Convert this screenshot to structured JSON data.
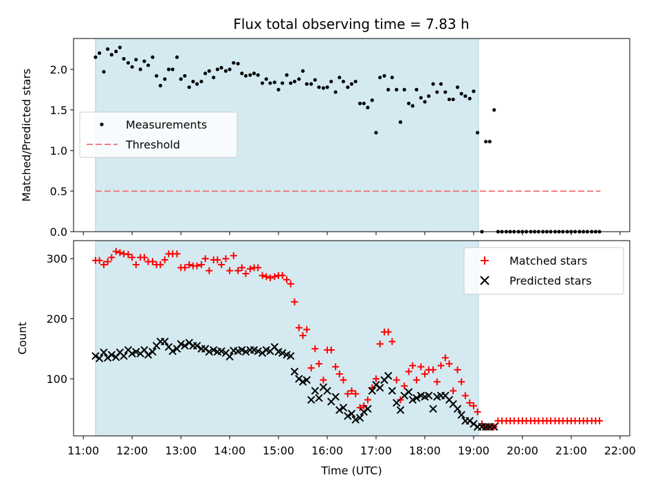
{
  "title": "Flux total observing time = 7.83 h",
  "colors": {
    "shade": "#d4eaf0",
    "shade_edge": "#a8d3de",
    "measure": "#000000",
    "threshold": "#f08080",
    "matched": "#ff0000",
    "predicted": "#000000"
  },
  "chart_data": [
    {
      "type": "scatter",
      "ylabel": "Matched/Predicted stars",
      "ylim": [
        0,
        2.38
      ],
      "yticks": [
        "0.0",
        "0.5",
        "1.0",
        "1.5",
        "2.0"
      ],
      "xlim_hours": [
        10.8,
        22.2
      ],
      "shaded_interval_hours": [
        11.25,
        19.1
      ],
      "legend": {
        "position": "center-left",
        "entries": [
          "Measurements",
          "Threshold"
        ]
      },
      "threshold": {
        "name": "Threshold",
        "value": 0.5,
        "x_range_hours": [
          11.25,
          21.6
        ]
      },
      "series": [
        {
          "name": "Measurements",
          "marker": "dot",
          "x": [
            11.25,
            11.33,
            11.42,
            11.5,
            11.58,
            11.67,
            11.75,
            11.83,
            11.92,
            12.0,
            12.08,
            12.17,
            12.25,
            12.33,
            12.42,
            12.5,
            12.58,
            12.67,
            12.75,
            12.83,
            12.92,
            13.0,
            13.08,
            13.17,
            13.25,
            13.33,
            13.42,
            13.5,
            13.58,
            13.67,
            13.75,
            13.83,
            13.92,
            14.0,
            14.08,
            14.17,
            14.25,
            14.33,
            14.42,
            14.5,
            14.58,
            14.67,
            14.75,
            14.83,
            14.92,
            15.0,
            15.08,
            15.17,
            15.25,
            15.33,
            15.42,
            15.5,
            15.58,
            15.67,
            15.75,
            15.83,
            15.92,
            16.0,
            16.08,
            16.17,
            16.25,
            16.33,
            16.42,
            16.5,
            16.58,
            16.67,
            16.75,
            16.83,
            16.92,
            17.0,
            17.08,
            17.17,
            17.25,
            17.33,
            17.42,
            17.5,
            17.58,
            17.67,
            17.75,
            17.83,
            17.92,
            18.0,
            18.08,
            18.17,
            18.25,
            18.33,
            18.42,
            18.5,
            18.58,
            18.67,
            18.75,
            18.83,
            18.92,
            19.0,
            19.08,
            19.17,
            19.25,
            19.33,
            19.42,
            19.5,
            19.58,
            19.67,
            19.75,
            19.83,
            19.92,
            20.0,
            20.08,
            20.17,
            20.25,
            20.33,
            20.42,
            20.5,
            20.58,
            20.67,
            20.75,
            20.83,
            20.92,
            21.0,
            21.08,
            21.17,
            21.25,
            21.33,
            21.42,
            21.5,
            21.58
          ],
          "y": [
            2.15,
            2.2,
            1.97,
            2.25,
            2.18,
            2.22,
            2.27,
            2.13,
            2.08,
            2.03,
            2.12,
            2.0,
            2.1,
            2.05,
            2.15,
            1.92,
            1.8,
            1.88,
            2.0,
            2.0,
            2.15,
            1.88,
            1.92,
            1.78,
            1.85,
            1.82,
            1.85,
            1.95,
            1.98,
            1.9,
            2.0,
            2.02,
            1.98,
            2.0,
            2.08,
            2.07,
            1.95,
            1.92,
            1.93,
            1.95,
            1.93,
            1.83,
            1.88,
            1.83,
            1.84,
            1.75,
            1.83,
            1.93,
            1.83,
            1.85,
            1.88,
            1.98,
            1.82,
            1.82,
            1.87,
            1.78,
            1.77,
            1.78,
            1.85,
            1.72,
            1.9,
            1.85,
            1.78,
            1.82,
            1.85,
            1.58,
            1.58,
            1.53,
            1.62,
            1.22,
            1.9,
            1.92,
            1.75,
            1.9,
            1.75,
            1.35,
            1.75,
            1.58,
            1.55,
            1.75,
            1.65,
            1.6,
            1.67,
            1.82,
            1.72,
            1.82,
            1.72,
            1.63,
            1.63,
            1.78,
            1.7,
            1.67,
            1.64,
            1.73,
            1.22,
            0.0,
            1.11,
            1.11,
            1.5,
            0.0,
            0.0,
            0.0,
            0.0,
            0.0,
            0.0,
            0.0,
            0.0,
            0.0,
            0.0,
            0.0,
            0.0,
            0.0,
            0.0,
            0.0,
            0.0,
            0.0,
            0.0,
            0.0,
            0.0,
            0.0,
            0.0,
            0.0,
            0.0,
            0.0,
            0.0
          ]
        }
      ]
    },
    {
      "type": "scatter",
      "ylabel": "Count",
      "xlabel": "Time (UTC)",
      "ylim": [
        5,
        330
      ],
      "yticks": [
        "100",
        "200",
        "300"
      ],
      "xlim_hours": [
        10.8,
        22.2
      ],
      "xticks": [
        "11:00",
        "12:00",
        "13:00",
        "14:00",
        "15:00",
        "16:00",
        "17:00",
        "18:00",
        "19:00",
        "20:00",
        "21:00",
        "22:00"
      ],
      "shaded_interval_hours": [
        11.25,
        19.1
      ],
      "legend": {
        "position": "top-right",
        "entries": [
          "Matched stars",
          "Predicted stars"
        ]
      },
      "series": [
        {
          "name": "Matched stars",
          "marker": "plus",
          "x": [
            11.25,
            11.33,
            11.42,
            11.5,
            11.58,
            11.67,
            11.75,
            11.83,
            11.92,
            12.0,
            12.08,
            12.17,
            12.25,
            12.33,
            12.42,
            12.5,
            12.58,
            12.67,
            12.75,
            12.83,
            12.92,
            13.0,
            13.08,
            13.17,
            13.25,
            13.33,
            13.42,
            13.5,
            13.58,
            13.67,
            13.75,
            13.83,
            13.92,
            14.0,
            14.08,
            14.17,
            14.25,
            14.33,
            14.42,
            14.5,
            14.58,
            14.67,
            14.75,
            14.83,
            14.92,
            15.0,
            15.08,
            15.17,
            15.25,
            15.33,
            15.42,
            15.5,
            15.58,
            15.67,
            15.75,
            15.83,
            15.92,
            16.0,
            16.08,
            16.17,
            16.25,
            16.33,
            16.42,
            16.5,
            16.58,
            16.67,
            16.75,
            16.83,
            16.92,
            17.0,
            17.08,
            17.17,
            17.25,
            17.33,
            17.42,
            17.5,
            17.58,
            17.67,
            17.75,
            17.83,
            17.92,
            18.0,
            18.08,
            18.17,
            18.25,
            18.33,
            18.42,
            18.5,
            18.58,
            18.67,
            18.75,
            18.83,
            18.92,
            19.0,
            19.08,
            19.17,
            19.25,
            19.33,
            19.42,
            19.5,
            19.58,
            19.67,
            19.75,
            19.83,
            19.92,
            20.0,
            20.08,
            20.17,
            20.25,
            20.33,
            20.42,
            20.5,
            20.58,
            20.67,
            20.75,
            20.83,
            20.92,
            21.0,
            21.08,
            21.17,
            21.25,
            21.33,
            21.42,
            21.5,
            21.58
          ],
          "y": [
            297,
            297,
            290,
            295,
            302,
            312,
            310,
            308,
            307,
            302,
            290,
            302,
            302,
            295,
            295,
            290,
            290,
            298,
            308,
            308,
            308,
            285,
            285,
            290,
            288,
            288,
            290,
            300,
            280,
            298,
            298,
            290,
            300,
            280,
            305,
            280,
            285,
            275,
            283,
            285,
            285,
            272,
            270,
            268,
            270,
            272,
            272,
            265,
            258,
            228,
            185,
            172,
            182,
            118,
            150,
            125,
            98,
            148,
            148,
            120,
            108,
            98,
            75,
            80,
            75,
            52,
            55,
            65,
            85,
            100,
            158,
            178,
            178,
            162,
            98,
            65,
            88,
            112,
            122,
            98,
            120,
            108,
            115,
            115,
            95,
            122,
            135,
            125,
            80,
            115,
            95,
            72,
            60,
            55,
            45,
            25,
            20,
            20,
            20,
            30,
            30,
            30,
            30,
            30,
            30,
            30,
            30,
            30,
            30,
            30,
            30,
            30,
            30,
            30,
            30,
            30,
            30,
            30,
            30,
            30,
            30,
            30,
            30,
            30,
            30
          ]
        },
        {
          "name": "Predicted stars",
          "marker": "x",
          "x": [
            11.25,
            11.33,
            11.42,
            11.5,
            11.58,
            11.67,
            11.75,
            11.83,
            11.92,
            12.0,
            12.08,
            12.17,
            12.25,
            12.33,
            12.42,
            12.5,
            12.58,
            12.67,
            12.75,
            12.83,
            12.92,
            13.0,
            13.08,
            13.17,
            13.25,
            13.33,
            13.42,
            13.5,
            13.58,
            13.67,
            13.75,
            13.83,
            13.92,
            14.0,
            14.08,
            14.17,
            14.25,
            14.33,
            14.42,
            14.5,
            14.58,
            14.67,
            14.75,
            14.83,
            14.92,
            15.0,
            15.08,
            15.17,
            15.25,
            15.33,
            15.42,
            15.5,
            15.58,
            15.67,
            15.75,
            15.83,
            15.92,
            16.0,
            16.08,
            16.17,
            16.25,
            16.33,
            16.42,
            16.5,
            16.58,
            16.67,
            16.75,
            16.83,
            16.92,
            17.0,
            17.08,
            17.17,
            17.25,
            17.33,
            17.42,
            17.5,
            17.58,
            17.67,
            17.75,
            17.83,
            17.92,
            18.0,
            18.08,
            18.17,
            18.25,
            18.33,
            18.42,
            18.5,
            18.58,
            18.67,
            18.75,
            18.83,
            18.92,
            19.0,
            19.08,
            19.17,
            19.25,
            19.33,
            19.42
          ],
          "y": [
            138,
            134,
            144,
            135,
            140,
            136,
            144,
            138,
            148,
            142,
            145,
            142,
            148,
            140,
            145,
            155,
            162,
            162,
            153,
            146,
            150,
            158,
            155,
            160,
            155,
            155,
            150,
            150,
            145,
            148,
            145,
            146,
            143,
            137,
            147,
            146,
            148,
            145,
            148,
            148,
            146,
            143,
            148,
            146,
            153,
            145,
            143,
            140,
            138,
            112,
            100,
            95,
            98,
            65,
            80,
            68,
            86,
            80,
            62,
            70,
            48,
            52,
            38,
            42,
            32,
            35,
            45,
            50,
            80,
            90,
            85,
            98,
            105,
            80,
            60,
            48,
            72,
            78,
            65,
            68,
            72,
            70,
            72,
            50,
            70,
            72,
            72,
            65,
            58,
            50,
            40,
            30,
            30,
            25,
            20,
            20,
            20,
            20,
            20
          ]
        }
      ]
    }
  ]
}
